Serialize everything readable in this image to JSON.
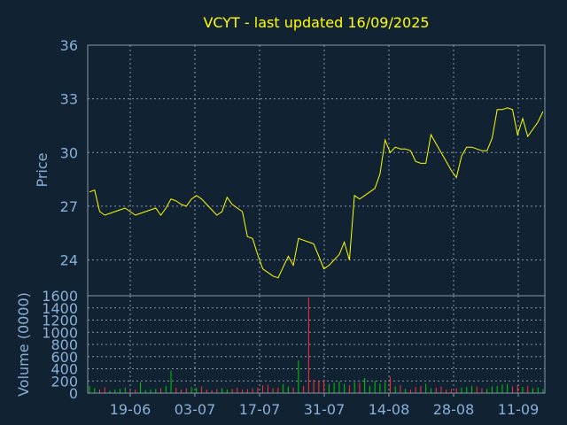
{
  "chart_data": [
    {
      "type": "line",
      "title": "VCYT - last updated 16/09/2025",
      "xlabel": "",
      "ylabel": "Price",
      "ylim": [
        22,
        36
      ],
      "yticks": [
        24,
        27,
        30,
        33,
        36
      ],
      "grid": true,
      "x_tick_labels": [
        "19-06",
        "03-07",
        "17-07",
        "31-07",
        "14-08",
        "28-08",
        "11-09"
      ],
      "series": [
        {
          "values": [
            27.8,
            27.9,
            26.7,
            26.5,
            26.6,
            26.7,
            26.8,
            26.9,
            26.7,
            26.5,
            26.6,
            26.7,
            26.8,
            26.9,
            26.5,
            26.9,
            27.4,
            27.3,
            27.1,
            27.0,
            27.4,
            27.6,
            27.4,
            27.1,
            26.8,
            26.5,
            26.7,
            27.5,
            27.1,
            26.9,
            26.7,
            25.3,
            25.2,
            24.3,
            23.5,
            23.3,
            23.1,
            23.0,
            23.6,
            24.2,
            23.7,
            25.2,
            25.1,
            25.0,
            24.9,
            24.2,
            23.5,
            23.7,
            24.0,
            24.3,
            25.0,
            24.0,
            27.6,
            27.4,
            27.6,
            27.8,
            28.0,
            28.8,
            30.7,
            30.0,
            30.3,
            30.2,
            30.2,
            30.1,
            29.5,
            29.4,
            29.4,
            31.0,
            30.5,
            30.0,
            29.5,
            29.0,
            28.6,
            29.8,
            30.3,
            30.3,
            30.2,
            30.1,
            30.1,
            30.8,
            32.4,
            32.4,
            32.5,
            32.4,
            31.0,
            31.9,
            30.9,
            31.3,
            31.7,
            32.3
          ]
        }
      ]
    },
    {
      "type": "bar",
      "ylabel": "Volume (0000)",
      "ylim": [
        0,
        1600
      ],
      "yticks": [
        0,
        200,
        400,
        600,
        800,
        1000,
        1200,
        1400,
        1600
      ],
      "grid": true,
      "series": [
        {
          "values": [
            120,
            80,
            60,
            100,
            40,
            60,
            70,
            90,
            50,
            60,
            180,
            50,
            60,
            70,
            80,
            120,
            370,
            90,
            60,
            80,
            100,
            90,
            110,
            60,
            50,
            70,
            80,
            60,
            70,
            90,
            60,
            70,
            80,
            90,
            130,
            140,
            80,
            90,
            150,
            110,
            90,
            540,
            120,
            1570,
            220,
            200,
            210,
            150,
            170,
            190,
            150,
            130,
            180,
            170,
            250,
            120,
            200,
            160,
            180,
            270,
            110,
            130,
            70,
            60,
            100,
            120,
            150,
            80,
            90,
            110,
            60,
            70,
            80,
            90,
            100,
            120,
            110,
            80,
            70,
            110,
            120,
            140,
            150,
            110,
            130,
            100,
            120,
            80,
            90,
            70
          ]
        }
      ],
      "up_color": "#00cc00",
      "down_color": "#ff3333"
    }
  ],
  "colors": {
    "background": "#112233",
    "text": "#8ab0d8",
    "title": "#ffff00",
    "line": "#ffff00",
    "grid": "#8899aa"
  }
}
